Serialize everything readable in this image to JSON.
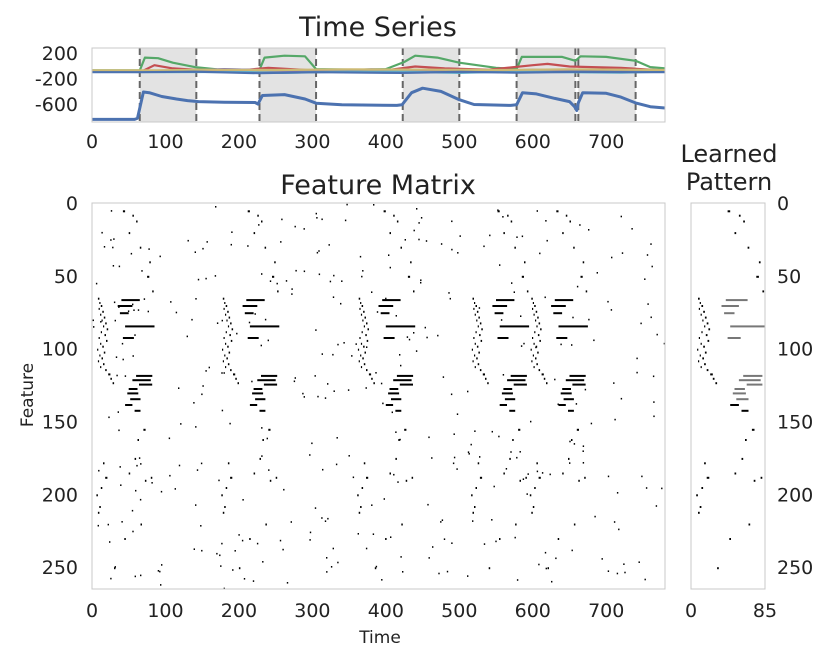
{
  "chart_data": [
    {
      "type": "line",
      "title": "Time Series",
      "xlim": [
        0,
        780
      ],
      "ylim": [
        -880,
        280
      ],
      "x_ticks": [
        0,
        100,
        200,
        300,
        400,
        500,
        600,
        700
      ],
      "y_ticks": [
        200,
        -200,
        -600
      ],
      "y_tick_labels": [
        "200",
        "-200",
        "-600"
      ],
      "grid": false,
      "shaded_windows": [
        [
          65,
          142
        ],
        [
          228,
          305
        ],
        [
          423,
          500
        ],
        [
          578,
          658
        ],
        [
          662,
          740
        ]
      ],
      "series": [
        {
          "color": "#4c72b0",
          "values": [
            [
              0,
              -840
            ],
            [
              58,
              -840
            ],
            [
              62,
              -820
            ],
            [
              70,
              -410
            ],
            [
              78,
              -420
            ],
            [
              95,
              -480
            ],
            [
              115,
              -520
            ],
            [
              130,
              -545
            ],
            [
              145,
              -560
            ],
            [
              180,
              -570
            ],
            [
              222,
              -575
            ],
            [
              226,
              -600
            ],
            [
              232,
              -465
            ],
            [
              262,
              -450
            ],
            [
              290,
              -520
            ],
            [
              305,
              -585
            ],
            [
              340,
              -610
            ],
            [
              415,
              -620
            ],
            [
              422,
              -610
            ],
            [
              435,
              -420
            ],
            [
              450,
              -350
            ],
            [
              475,
              -400
            ],
            [
              500,
              -530
            ],
            [
              520,
              -605
            ],
            [
              570,
              -620
            ],
            [
              578,
              -610
            ],
            [
              586,
              -420
            ],
            [
              605,
              -440
            ],
            [
              630,
              -510
            ],
            [
              650,
              -560
            ],
            [
              657,
              -640
            ],
            [
              660,
              -700
            ],
            [
              662,
              -580
            ],
            [
              668,
              -420
            ],
            [
              700,
              -430
            ],
            [
              720,
              -490
            ],
            [
              740,
              -580
            ],
            [
              760,
              -640
            ],
            [
              780,
              -660
            ]
          ]
        },
        {
          "color": "#55a868",
          "values": [
            [
              0,
              -70
            ],
            [
              65,
              -70
            ],
            [
              72,
              130
            ],
            [
              90,
              120
            ],
            [
              110,
              50
            ],
            [
              140,
              -20
            ],
            [
              170,
              -55
            ],
            [
              228,
              -60
            ],
            [
              235,
              130
            ],
            [
              262,
              160
            ],
            [
              290,
              150
            ],
            [
              305,
              -50
            ],
            [
              360,
              -60
            ],
            [
              400,
              -50
            ],
            [
              425,
              60
            ],
            [
              440,
              160
            ],
            [
              470,
              130
            ],
            [
              500,
              50
            ],
            [
              550,
              -30
            ],
            [
              578,
              -50
            ],
            [
              585,
              140
            ],
            [
              640,
              140
            ],
            [
              658,
              80
            ],
            [
              665,
              150
            ],
            [
              700,
              140
            ],
            [
              740,
              80
            ],
            [
              760,
              -20
            ],
            [
              780,
              -40
            ]
          ]
        },
        {
          "color": "#c44e52",
          "values": [
            [
              0,
              -75
            ],
            [
              70,
              -75
            ],
            [
              85,
              10
            ],
            [
              110,
              -40
            ],
            [
              140,
              -60
            ],
            [
              200,
              -75
            ],
            [
              240,
              -30
            ],
            [
              270,
              -50
            ],
            [
              300,
              -70
            ],
            [
              400,
              -70
            ],
            [
              440,
              -10
            ],
            [
              480,
              -40
            ],
            [
              540,
              -60
            ],
            [
              600,
              10
            ],
            [
              620,
              30
            ],
            [
              650,
              -10
            ],
            [
              680,
              -20
            ],
            [
              720,
              -30
            ],
            [
              760,
              -60
            ],
            [
              780,
              -70
            ]
          ]
        },
        {
          "color": "#dd8452",
          "values": [
            [
              0,
              -85
            ],
            [
              100,
              -80
            ],
            [
              140,
              -85
            ],
            [
              300,
              -75
            ],
            [
              420,
              -70
            ],
            [
              470,
              -65
            ],
            [
              520,
              -75
            ],
            [
              600,
              -70
            ],
            [
              700,
              -75
            ],
            [
              780,
              -80
            ]
          ]
        },
        {
          "color": "#8172b2",
          "values": [
            [
              0,
              -80
            ],
            [
              100,
              -85
            ],
            [
              180,
              -50
            ],
            [
              240,
              -70
            ],
            [
              300,
              -90
            ],
            [
              380,
              -55
            ],
            [
              450,
              -75
            ],
            [
              520,
              -95
            ],
            [
              600,
              -60
            ],
            [
              680,
              -80
            ],
            [
              780,
              -70
            ]
          ]
        },
        {
          "color": "#64b5cd",
          "values": [
            [
              0,
              -90
            ],
            [
              100,
              -100
            ],
            [
              200,
              -95
            ],
            [
              260,
              -110
            ],
            [
              330,
              -95
            ],
            [
              420,
              -90
            ],
            [
              500,
              -110
            ],
            [
              580,
              -85
            ],
            [
              640,
              -100
            ],
            [
              720,
              -105
            ],
            [
              780,
              -90
            ]
          ]
        },
        {
          "color": "#ccb974",
          "values": [
            [
              0,
              -70
            ],
            [
              90,
              -70
            ],
            [
              150,
              -60
            ],
            [
              250,
              -65
            ],
            [
              350,
              -55
            ],
            [
              450,
              -60
            ],
            [
              560,
              -65
            ],
            [
              650,
              -55
            ],
            [
              780,
              -65
            ]
          ]
        },
        {
          "color": "#4c72b0",
          "values": [
            [
              0,
              -100
            ],
            [
              65,
              -100
            ],
            [
              140,
              -92
            ],
            [
              228,
              -115
            ],
            [
              305,
              -100
            ],
            [
              423,
              -110
            ],
            [
              500,
              -95
            ],
            [
              578,
              -105
            ],
            [
              660,
              -95
            ],
            [
              740,
              -100
            ],
            [
              780,
              -98
            ]
          ]
        }
      ]
    },
    {
      "type": "heatmap",
      "title": "Feature Matrix",
      "xlabel": "Time",
      "ylabel": "Feature",
      "xlim": [
        0,
        780
      ],
      "ylim": [
        0,
        265
      ],
      "x_ticks": [
        0,
        100,
        200,
        300,
        400,
        500,
        600,
        700
      ],
      "y_ticks": [
        0,
        50,
        100,
        150,
        200,
        250
      ],
      "grid": false,
      "pattern_offsets": [
        0,
        170,
        355,
        510,
        590
      ],
      "pattern_noise_seed": 17,
      "pattern_noise_count": 380
    },
    {
      "type": "heatmap",
      "title": "Learned\nPattern",
      "title_lines": [
        "Learned",
        "Pattern"
      ],
      "xlim": [
        0,
        85
      ],
      "ylim": [
        0,
        265
      ],
      "x_ticks": [
        0,
        85
      ],
      "y_ticks": [
        0,
        50,
        100,
        150,
        200,
        250
      ],
      "y_axis_side": "right",
      "grid": false,
      "cells": [
        [
          8,
          65,
          2
        ],
        [
          10,
          68,
          1
        ],
        [
          12,
          70,
          2
        ],
        [
          9,
          72,
          1
        ],
        [
          14,
          74,
          2
        ],
        [
          11,
          76,
          1
        ],
        [
          16,
          78,
          2
        ],
        [
          13,
          80,
          1
        ],
        [
          18,
          82,
          2
        ],
        [
          15,
          84,
          1
        ],
        [
          20,
          86,
          2
        ],
        [
          12,
          88,
          1
        ],
        [
          17,
          90,
          2
        ],
        [
          9,
          92,
          1
        ],
        [
          19,
          94,
          2
        ],
        [
          11,
          96,
          1
        ],
        [
          14,
          98,
          2
        ],
        [
          7,
          100,
          1
        ],
        [
          16,
          102,
          2
        ],
        [
          10,
          104,
          1
        ],
        [
          13,
          106,
          2
        ],
        [
          8,
          108,
          1
        ],
        [
          15,
          110,
          2
        ],
        [
          11,
          112,
          1
        ],
        [
          18,
          114,
          2
        ],
        [
          22,
          117,
          3
        ],
        [
          25,
          120,
          2
        ],
        [
          28,
          123,
          2
        ],
        [
          40,
          66,
          25
        ],
        [
          35,
          70,
          20
        ],
        [
          45,
          84,
          40
        ],
        [
          42,
          92,
          15
        ],
        [
          38,
          75,
          12
        ],
        [
          60,
          118,
          22
        ],
        [
          55,
          121,
          25
        ],
        [
          64,
          124,
          18
        ],
        [
          50,
          127,
          12
        ],
        [
          48,
          130,
          15
        ],
        [
          52,
          134,
          14
        ],
        [
          45,
          138,
          10
        ],
        [
          58,
          142,
          8
        ],
        [
          42,
          5,
          3
        ],
        [
          55,
          8,
          2
        ],
        [
          60,
          12,
          2
        ],
        [
          50,
          20,
          2
        ],
        [
          65,
          30,
          2
        ],
        [
          75,
          50,
          3
        ],
        [
          82,
          60,
          2
        ],
        [
          78,
          40,
          2
        ],
        [
          70,
          155,
          3
        ],
        [
          62,
          162,
          2
        ],
        [
          58,
          175,
          2
        ],
        [
          50,
          185,
          2
        ],
        [
          12,
          195,
          2
        ],
        [
          18,
          188,
          3
        ],
        [
          10,
          208,
          2
        ],
        [
          8,
          212,
          2
        ],
        [
          6,
          200,
          2
        ],
        [
          15,
          178,
          2
        ],
        [
          72,
          190,
          2
        ],
        [
          80,
          188,
          2
        ],
        [
          30,
          250,
          2
        ],
        [
          44,
          230,
          2
        ],
        [
          66,
          220,
          2
        ]
      ]
    }
  ]
}
